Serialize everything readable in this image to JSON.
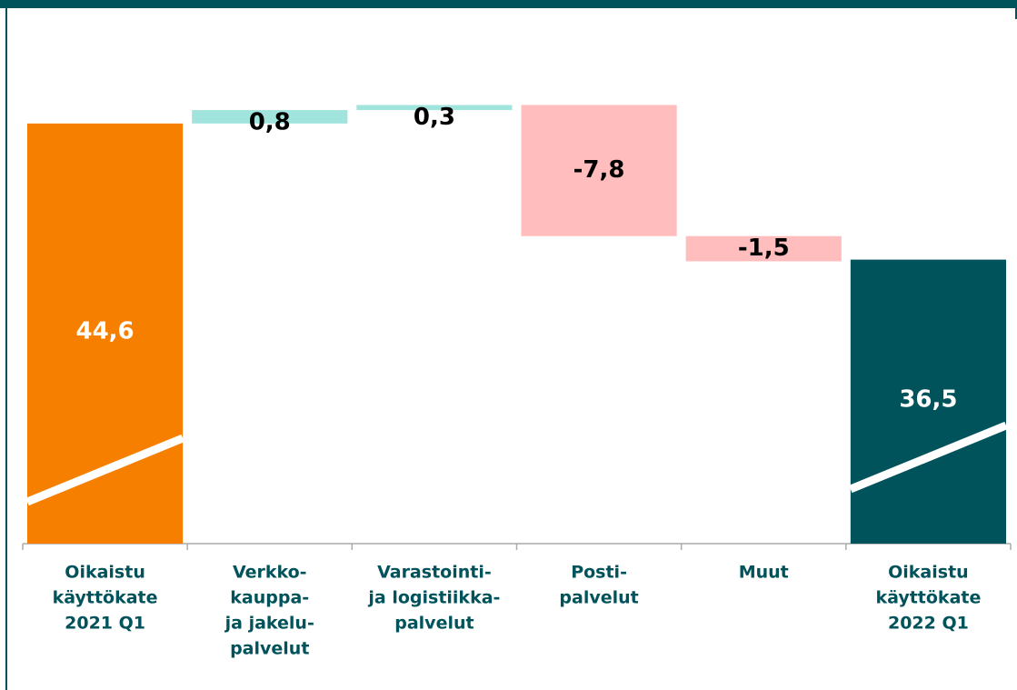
{
  "chart_data": {
    "type": "waterfall",
    "categories": [
      [
        "Oikaistu",
        "käyttökate",
        "2021 Q1"
      ],
      [
        "Verkko-",
        "kauppa-",
        "ja jakelu-",
        "palvelut"
      ],
      [
        "Varastointi-",
        "ja logistiikka-",
        "palvelut"
      ],
      [
        "Posti-",
        "palvelut"
      ],
      [
        "Muut"
      ],
      [
        "Oikaistu",
        "käyttökate",
        "2022 Q1"
      ]
    ],
    "values": [
      44.6,
      0.8,
      0.3,
      -7.8,
      -1.5,
      36.5
    ],
    "value_labels": [
      "44,6",
      "0,8",
      "0,3",
      "-7,8",
      "-1,5",
      "36,5"
    ],
    "measure": [
      "absolute",
      "relative",
      "relative",
      "relative",
      "relative",
      "absolute"
    ],
    "colors": [
      "#f77f00",
      "#a0e4dd",
      "#a0e4dd",
      "#ffbdbd",
      "#ffbdbd",
      "#00525b"
    ],
    "ylim": [
      19.6,
      48
    ]
  }
}
